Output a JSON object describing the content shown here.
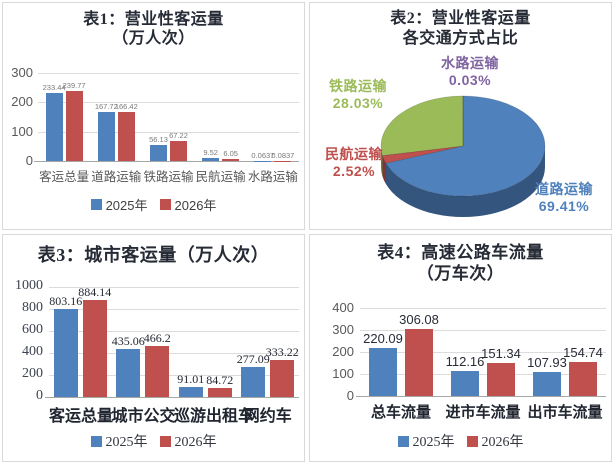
{
  "page": {
    "background": "#ffffff",
    "panel_border": "#d9d9d9"
  },
  "palette": {
    "series_2025": "#4F81BD",
    "series_2026": "#C0504D",
    "pie_green": "#9BBB59",
    "pie_purple": "#8064A2",
    "title_color": "#262b36"
  },
  "chart_data": [
    {
      "id": "table1",
      "type": "bar",
      "title": "表1：营业性客运量",
      "subtitle": "（万人次）",
      "categories": [
        "客运总量",
        "道路运输",
        "铁路运输",
        "民航运输",
        "水路运输"
      ],
      "series": [
        {
          "name": "2025年",
          "color": "#4F81BD",
          "values": [
            233.44,
            167.72,
            56.13,
            9.52,
            0.0637
          ],
          "value_labels": [
            "233.44",
            "167.72",
            "56.13",
            "9.52",
            "0.0637"
          ]
        },
        {
          "name": "2026年",
          "color": "#C0504D",
          "values": [
            239.77,
            166.42,
            67.22,
            6.05,
            0.0837
          ],
          "value_labels": [
            "239.77",
            "166.42",
            "67.22",
            "6.05",
            "0.0837"
          ]
        }
      ],
      "ylim": [
        0,
        300
      ],
      "yticks": [
        0,
        100,
        200,
        300
      ],
      "grid": true,
      "legend_position": "bottom"
    },
    {
      "id": "table2",
      "type": "pie",
      "title": "表2：营业性客运量",
      "subtitle": "各交通方式占比",
      "slices": [
        {
          "label": "道路运输",
          "value": 69.41,
          "pct_label": "69.41%",
          "color": "#4F81BD"
        },
        {
          "label": "民航运输",
          "value": 2.52,
          "pct_label": "2.52%",
          "color": "#C0504D"
        },
        {
          "label": "铁路运输",
          "value": 28.03,
          "pct_label": "28.03%",
          "color": "#9BBB59"
        },
        {
          "label": "水路运输",
          "value": 0.03,
          "pct_label": "0.03%",
          "color": "#8064A2"
        }
      ],
      "legend_position": "none"
    },
    {
      "id": "table3",
      "type": "bar",
      "title": "表3：城市客运量（万人次）",
      "subtitle": "",
      "categories": [
        "客运总量",
        "城市公交",
        "巡游出租车",
        "网约车"
      ],
      "series": [
        {
          "name": "2025年",
          "color": "#4F81BD",
          "values": [
            803.16,
            435.06,
            91.01,
            277.09
          ],
          "value_labels": [
            "803.16",
            "435.06",
            "91.01",
            "277.09"
          ]
        },
        {
          "name": "2026年",
          "color": "#C0504D",
          "values": [
            884.14,
            466.2,
            84.72,
            333.22
          ],
          "value_labels": [
            "884.14",
            "466.2",
            "84.72",
            "333.22"
          ]
        }
      ],
      "ylim": [
        0,
        1000
      ],
      "yticks": [
        0,
        200,
        400,
        600,
        800,
        1000
      ],
      "grid": true,
      "legend_position": "bottom"
    },
    {
      "id": "table4",
      "type": "bar",
      "title": "表4：高速公路车流量",
      "subtitle": "（万车次）",
      "categories": [
        "总车流量",
        "进市车流量",
        "出市车流量"
      ],
      "series": [
        {
          "name": "2025年",
          "color": "#4F81BD",
          "values": [
            220.09,
            112.16,
            107.93
          ],
          "value_labels": [
            "220.09",
            "112.16",
            "107.93"
          ]
        },
        {
          "name": "2026年",
          "color": "#C0504D",
          "values": [
            306.08,
            151.34,
            154.74
          ],
          "value_labels": [
            "306.08",
            "151.34",
            "154.74"
          ]
        }
      ],
      "ylim": [
        0,
        400
      ],
      "yticks": [
        0,
        100,
        200,
        300,
        400
      ],
      "grid": true,
      "legend_position": "bottom"
    }
  ]
}
